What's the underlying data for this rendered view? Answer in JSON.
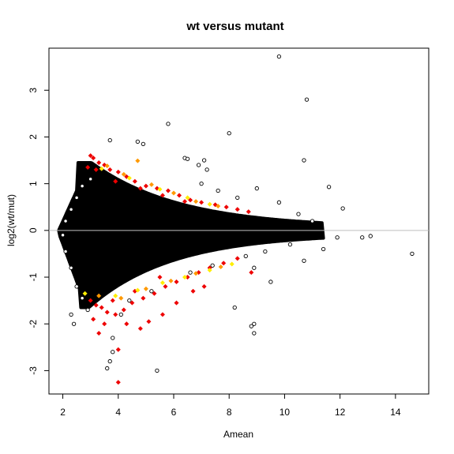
{
  "chart_data": {
    "type": "scatter",
    "title": "wt versus mutant",
    "xlabel": "Amean",
    "ylabel": "log2(wt/mut)",
    "xlim": [
      1.5,
      15.2
    ],
    "ylim": [
      -3.5,
      3.9
    ],
    "x_ticks": [
      2,
      4,
      6,
      8,
      10,
      12,
      14
    ],
    "y_ticks": [
      -3,
      -2,
      -1,
      0,
      1,
      2,
      3
    ],
    "reference_line": {
      "y": 0,
      "color": "#bfbfbf"
    },
    "grid": false,
    "legend": "none",
    "series": [
      {
        "color": "#000000",
        "marker": "open-circle",
        "points": [
          [
            9.8,
            3.72
          ],
          [
            10.8,
            2.8
          ],
          [
            5.8,
            2.28
          ],
          [
            8.0,
            2.08
          ],
          [
            3.7,
            1.93
          ],
          [
            4.7,
            1.9
          ],
          [
            4.9,
            1.85
          ],
          [
            10.7,
            1.5
          ],
          [
            6.4,
            1.55
          ],
          [
            6.5,
            1.53
          ],
          [
            7.1,
            1.5
          ],
          [
            6.9,
            1.4
          ],
          [
            7.2,
            1.3
          ],
          [
            11.6,
            0.93
          ],
          [
            12.1,
            0.47
          ],
          [
            12.8,
            -0.15
          ],
          [
            13.1,
            -0.12
          ],
          [
            14.6,
            -0.5
          ],
          [
            11.9,
            -0.15
          ],
          [
            11.4,
            -0.4
          ],
          [
            10.7,
            -0.65
          ],
          [
            8.9,
            -0.8
          ],
          [
            9.5,
            -1.1
          ],
          [
            8.2,
            -1.65
          ],
          [
            8.9,
            -2.0
          ],
          [
            8.8,
            -2.05
          ],
          [
            8.9,
            -2.2
          ],
          [
            5.4,
            -3.0
          ],
          [
            3.7,
            -2.8
          ],
          [
            3.8,
            -2.6
          ],
          [
            3.6,
            -2.95
          ],
          [
            2.4,
            -2.0
          ],
          [
            2.3,
            -1.8
          ],
          [
            3.8,
            -2.3
          ],
          [
            4.1,
            -1.8
          ],
          [
            9.0,
            0.9
          ],
          [
            9.8,
            0.6
          ],
          [
            10.5,
            0.35
          ],
          [
            11.0,
            0.2
          ],
          [
            10.2,
            -0.3
          ],
          [
            9.3,
            -0.45
          ],
          [
            7.0,
            1.0
          ],
          [
            7.6,
            0.85
          ],
          [
            8.3,
            0.7
          ],
          [
            3.0,
            1.1
          ],
          [
            2.7,
            0.95
          ],
          [
            2.5,
            0.7
          ],
          [
            2.3,
            0.45
          ],
          [
            2.1,
            0.2
          ],
          [
            2.0,
            -0.1
          ],
          [
            2.1,
            -0.45
          ],
          [
            2.3,
            -0.8
          ],
          [
            2.5,
            -1.2
          ],
          [
            2.7,
            -1.45
          ],
          [
            2.9,
            -1.7
          ],
          [
            4.4,
            -1.5
          ],
          [
            5.2,
            -1.3
          ],
          [
            6.6,
            -0.9
          ],
          [
            7.4,
            -0.75
          ],
          [
            8.6,
            -0.55
          ]
        ]
      },
      {
        "color": "#ee0000",
        "marker": "filled-diamond",
        "points": [
          [
            3.0,
            1.6
          ],
          [
            3.1,
            1.55
          ],
          [
            3.3,
            1.45
          ],
          [
            3.5,
            1.4
          ],
          [
            3.7,
            1.3
          ],
          [
            4.0,
            1.25
          ],
          [
            4.3,
            1.15
          ],
          [
            4.6,
            1.05
          ],
          [
            5.0,
            0.95
          ],
          [
            5.4,
            0.9
          ],
          [
            5.8,
            0.85
          ],
          [
            6.2,
            0.75
          ],
          [
            6.6,
            0.65
          ],
          [
            7.0,
            0.6
          ],
          [
            7.5,
            0.55
          ],
          [
            7.9,
            0.5
          ],
          [
            8.3,
            0.45
          ],
          [
            8.7,
            0.4
          ],
          [
            2.9,
            1.35
          ],
          [
            3.2,
            1.3
          ],
          [
            3.9,
            1.05
          ],
          [
            4.8,
            0.9
          ],
          [
            5.6,
            0.75
          ],
          [
            6.4,
            0.62
          ],
          [
            3.0,
            -1.5
          ],
          [
            3.2,
            -1.6
          ],
          [
            3.4,
            -1.65
          ],
          [
            3.6,
            -1.75
          ],
          [
            3.9,
            -1.8
          ],
          [
            4.2,
            -1.7
          ],
          [
            4.5,
            -1.55
          ],
          [
            4.9,
            -1.45
          ],
          [
            5.3,
            -1.35
          ],
          [
            5.7,
            -1.2
          ],
          [
            6.1,
            -1.1
          ],
          [
            6.5,
            -1.0
          ],
          [
            6.9,
            -0.9
          ],
          [
            7.3,
            -0.8
          ],
          [
            7.8,
            -0.7
          ],
          [
            8.3,
            -0.6
          ],
          [
            8.8,
            -0.9
          ],
          [
            3.5,
            -2.0
          ],
          [
            3.3,
            -2.2
          ],
          [
            4.0,
            -2.55
          ],
          [
            4.0,
            -3.25
          ],
          [
            4.8,
            -2.1
          ],
          [
            5.1,
            -1.95
          ],
          [
            5.6,
            -1.8
          ],
          [
            6.1,
            -1.55
          ],
          [
            4.3,
            -2.0
          ],
          [
            3.1,
            -1.9
          ],
          [
            3.8,
            -1.5
          ],
          [
            4.6,
            -1.3
          ],
          [
            5.5,
            -1.0
          ],
          [
            6.7,
            -1.3
          ],
          [
            7.1,
            -1.2
          ]
        ]
      },
      {
        "color": "#ff9900",
        "marker": "filled-diamond",
        "points": [
          [
            3.6,
            1.38
          ],
          [
            4.2,
            1.2
          ],
          [
            4.7,
            1.49
          ],
          [
            5.2,
            0.98
          ],
          [
            6.0,
            0.8
          ],
          [
            6.8,
            0.62
          ],
          [
            7.6,
            0.52
          ],
          [
            3.3,
            -1.4
          ],
          [
            4.1,
            -1.45
          ],
          [
            5.0,
            -1.25
          ],
          [
            5.9,
            -1.08
          ],
          [
            6.8,
            -0.92
          ],
          [
            7.7,
            -0.78
          ]
        ]
      },
      {
        "color": "#ffee00",
        "marker": "filled-diamond",
        "points": [
          [
            3.4,
            1.32
          ],
          [
            4.4,
            1.12
          ],
          [
            5.5,
            0.88
          ],
          [
            6.5,
            0.7
          ],
          [
            7.3,
            0.56
          ],
          [
            2.8,
            -1.35
          ],
          [
            3.9,
            -1.4
          ],
          [
            4.7,
            -1.28
          ],
          [
            5.6,
            -1.12
          ],
          [
            6.4,
            -1.0
          ],
          [
            7.3,
            -0.85
          ],
          [
            8.1,
            -0.72
          ]
        ]
      }
    ]
  }
}
